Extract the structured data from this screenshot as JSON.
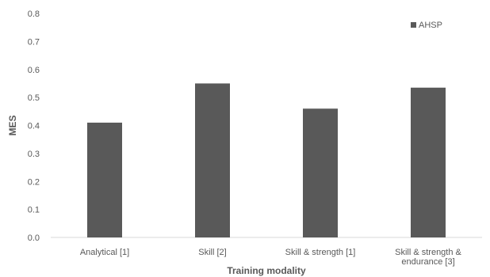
{
  "chart_data": {
    "type": "bar",
    "categories": [
      "Analytical [1]",
      "Skill [2]",
      "Skill & strength [1]",
      "Skill & strength & endurance [3]"
    ],
    "category_lines": [
      [
        "Analytical [1]"
      ],
      [
        "Skill [2]"
      ],
      [
        "Skill & strength [1]"
      ],
      [
        "Skill & strength &",
        "endurance [3]"
      ]
    ],
    "series": [
      {
        "name": "AHSP",
        "values": [
          0.41,
          0.55,
          0.46,
          0.535
        ]
      }
    ],
    "xlabel": "Training modality",
    "ylabel": "MES",
    "ylim": [
      0,
      0.8
    ],
    "yticks": [
      "0.0",
      "0.1",
      "0.2",
      "0.3",
      "0.4",
      "0.5",
      "0.6",
      "0.7",
      "0.8"
    ],
    "grid": false,
    "legend_position": "top-right",
    "colors": {
      "bar": "#595959",
      "axis": "#d9d9d9",
      "text": "#595959"
    }
  }
}
